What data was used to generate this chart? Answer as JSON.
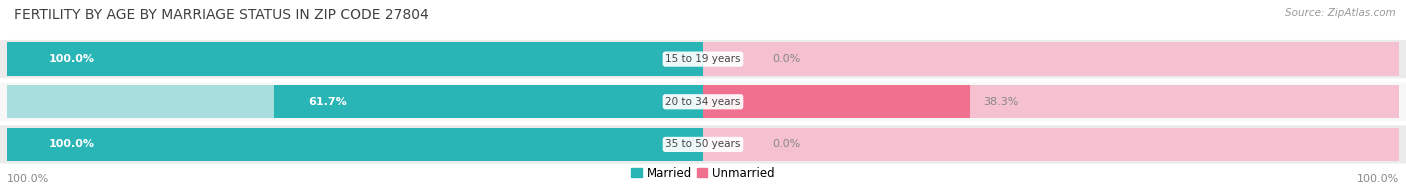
{
  "title": "FERTILITY BY AGE BY MARRIAGE STATUS IN ZIP CODE 27804",
  "source": "Source: ZipAtlas.com",
  "rows": [
    {
      "label": "15 to 19 years",
      "married": 100.0,
      "unmarried": 0.0
    },
    {
      "label": "20 to 34 years",
      "married": 61.7,
      "unmarried": 38.3
    },
    {
      "label": "35 to 50 years",
      "married": 100.0,
      "unmarried": 0.0
    }
  ],
  "married_color": "#29b4b6",
  "unmarried_color": "#f07090",
  "married_light_color": "#a8dede",
  "unmarried_light_color": "#f5c0d0",
  "row_bg_odd": "#ebebeb",
  "row_bg_even": "#f7f7f7",
  "title_fontsize": 10,
  "source_fontsize": 7.5,
  "label_fontsize": 7.5,
  "value_fontsize": 8,
  "legend_fontsize": 8.5,
  "axis_label_left": "100.0%",
  "axis_label_right": "100.0%"
}
